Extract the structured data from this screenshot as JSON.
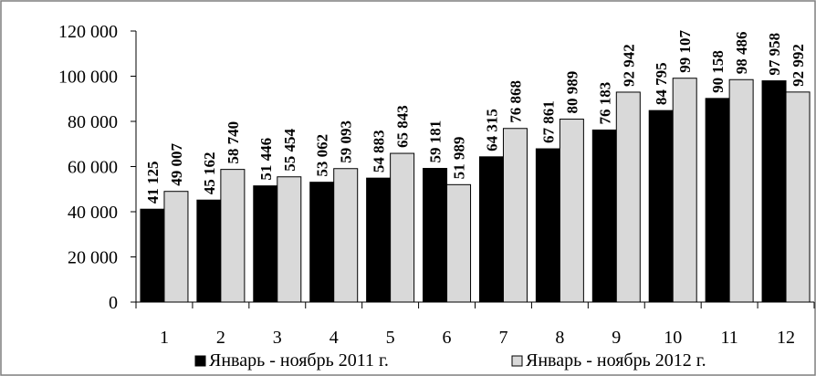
{
  "chart_data": {
    "type": "bar",
    "categories": [
      "1",
      "2",
      "3",
      "4",
      "5",
      "6",
      "7",
      "8",
      "9",
      "10",
      "11",
      "12"
    ],
    "series": [
      {
        "name": "Январь - ноябрь 2011 г.",
        "color": "#000000",
        "values": [
          41125,
          45162,
          51446,
          53062,
          54883,
          59181,
          64315,
          67861,
          76183,
          84795,
          90158,
          97958
        ],
        "labels": [
          "41 125",
          "45 162",
          "51 446",
          "53 062",
          "54 883",
          "59 181",
          "64 315",
          "67 861",
          "76 183",
          "84 795",
          "90 158",
          "97 958"
        ]
      },
      {
        "name": "Январь - ноябрь 2012 г.",
        "color": "#d9d9d9",
        "values": [
          49007,
          58740,
          55454,
          59093,
          65843,
          51989,
          76868,
          80989,
          92942,
          99107,
          98486,
          92992
        ],
        "labels": [
          "49 007",
          "58 740",
          "55 454",
          "59 093",
          "65 843",
          "51 989",
          "76 868",
          "80 989",
          "92 942",
          "99 107",
          "98 486",
          "92 992"
        ]
      }
    ],
    "yticks": [
      0,
      20000,
      40000,
      60000,
      80000,
      100000,
      120000
    ],
    "ytick_labels": [
      "0",
      "20 000",
      "40 000",
      "60 000",
      "80 000",
      "100 000",
      "120 000"
    ],
    "ylim": [
      0,
      120000
    ],
    "grid": false,
    "legend_position": "bottom"
  }
}
